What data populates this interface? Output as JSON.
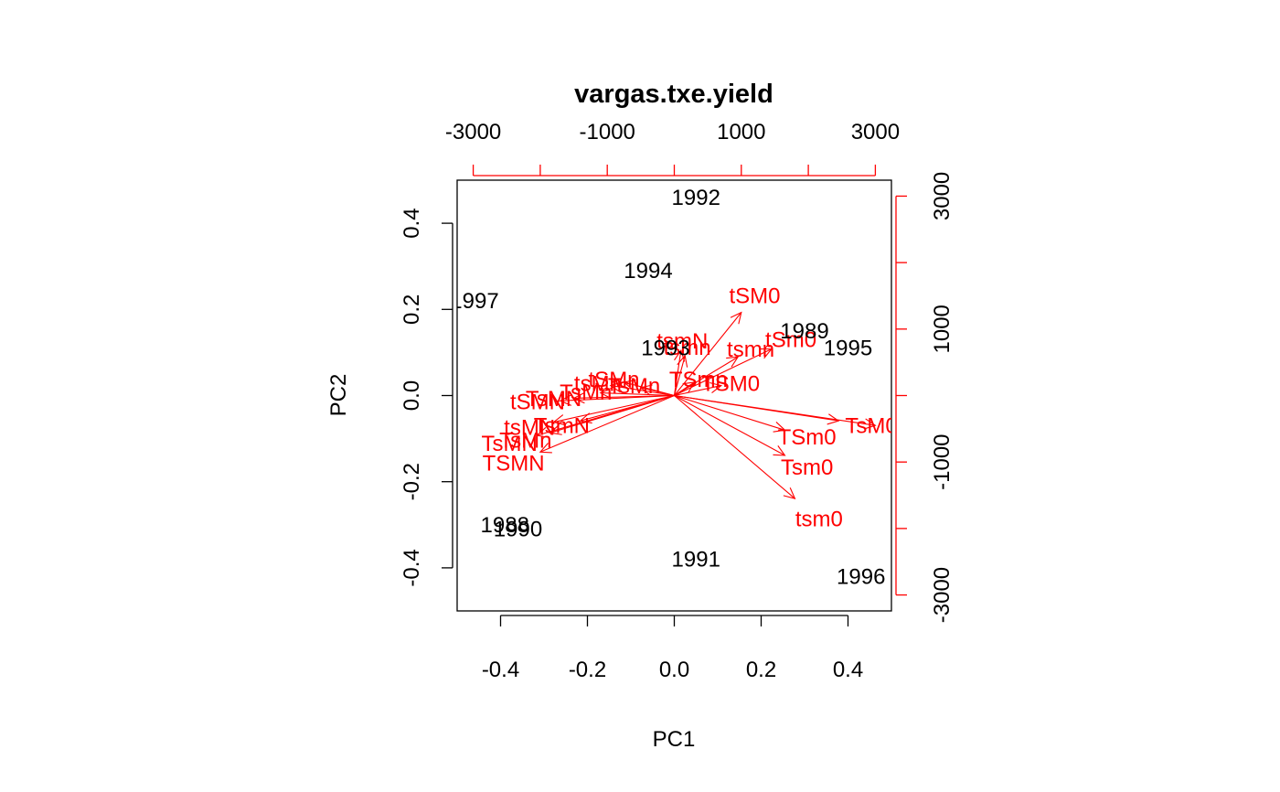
{
  "chart_data": {
    "type": "scatter",
    "title": "vargas.txe.yield",
    "xlabel": "PC1",
    "ylabel": "PC2",
    "xlim": [
      -0.5,
      0.5
    ],
    "ylim": [
      -0.5,
      0.5
    ],
    "x_ticks": [
      -0.4,
      -0.2,
      0.0,
      0.2,
      0.4
    ],
    "x_tick_labels": [
      "-0.4",
      "-0.2",
      "0.0",
      "0.2",
      "0.4"
    ],
    "y_ticks": [
      -0.4,
      -0.2,
      0.0,
      0.2,
      0.4
    ],
    "y_tick_labels": [
      "-0.4",
      "-0.2",
      "0.0",
      "0.2",
      "0.4"
    ],
    "secondary_x_ticks": [
      -3000,
      -2000,
      -1000,
      0,
      1000,
      2000,
      3000
    ],
    "secondary_x_tick_labels": [
      "-3000",
      "",
      "-1000",
      "",
      "1000",
      "",
      "3000"
    ],
    "secondary_y_ticks": [
      -3000,
      -2000,
      -1000,
      0,
      1000,
      2000,
      3000
    ],
    "secondary_y_tick_labels": [
      "-3000",
      "",
      "-1000",
      "",
      "1000",
      "",
      "3000"
    ],
    "secondary_axis_range": [
      -3240,
      3240
    ],
    "grid": false,
    "colors": {
      "points": "#000000",
      "variables": "#ff0000"
    },
    "observations": [
      {
        "label": "1992",
        "x": 0.05,
        "y": 0.46
      },
      {
        "label": "1994",
        "x": -0.06,
        "y": 0.29
      },
      {
        "label": "1997",
        "x": -0.46,
        "y": 0.22
      },
      {
        "label": "1989",
        "x": 0.3,
        "y": 0.15
      },
      {
        "label": "1995",
        "x": 0.4,
        "y": 0.11
      },
      {
        "label": "1993",
        "x": -0.02,
        "y": 0.11
      },
      {
        "label": "1988",
        "x": -0.39,
        "y": -0.3
      },
      {
        "label": "1990",
        "x": -0.36,
        "y": -0.31
      },
      {
        "label": "1991",
        "x": 0.05,
        "y": -0.38
      },
      {
        "label": "1996",
        "x": 0.43,
        "y": -0.42
      }
    ],
    "variables": [
      {
        "label": "tSM0",
        "x": 1000,
        "y": 1250
      },
      {
        "label": "tsmN",
        "x": 100,
        "y": 680
      },
      {
        "label": "tsmn",
        "x": 160,
        "y": 600
      },
      {
        "label": "tSm0",
        "x": 1450,
        "y": 700
      },
      {
        "label": "tsmn",
        "x": 950,
        "y": 580
      },
      {
        "label": "TsM0",
        "x": 2450,
        "y": -380
      },
      {
        "label": "TsM",
        "x": 3000,
        "y": -450
      },
      {
        "label": "TSm0",
        "x": 1650,
        "y": -520
      },
      {
        "label": "Tsm0",
        "x": 1650,
        "y": -900
      },
      {
        "label": "tsm0",
        "x": 1800,
        "y": -1550
      },
      {
        "label": "TSMN",
        "x": -2000,
        "y": -850
      },
      {
        "label": "TsMN",
        "x": -2050,
        "y": -600
      },
      {
        "label": "TsMn",
        "x": -1850,
        "y": -560
      },
      {
        "label": "tsMN",
        "x": -1800,
        "y": -400
      },
      {
        "label": "TsmN",
        "x": -1400,
        "y": -380
      },
      {
        "label": "tSMN",
        "x": -1700,
        "y": -80
      },
      {
        "label": "TsMN",
        "x": -1500,
        "y": -40
      },
      {
        "label": "tsMn",
        "x": -950,
        "y": 150
      },
      {
        "label": "tSMn",
        "x": -750,
        "y": 200
      },
      {
        "label": "TsMn",
        "x": -500,
        "y": 120
      },
      {
        "label": "TSmn",
        "x": 300,
        "y": 200
      },
      {
        "label": "TSM0",
        "x": 700,
        "y": 150
      },
      {
        "label": "TsMn",
        "x": -1100,
        "y": 40
      }
    ]
  }
}
